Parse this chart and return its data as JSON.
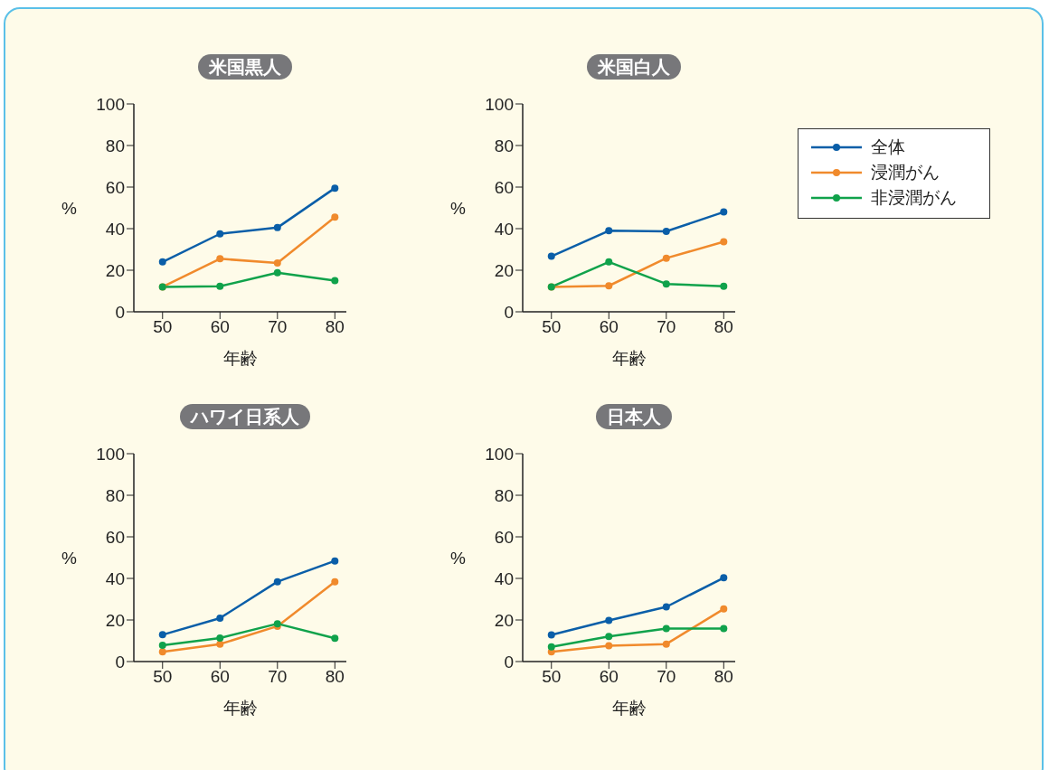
{
  "chart_data": [
    {
      "type": "line",
      "title": "米国黒人",
      "xlabel": "年齢",
      "ylabel": "%",
      "x": [
        50,
        60,
        70,
        80
      ],
      "xlim": [
        45,
        82
      ],
      "xticks": [
        50,
        60,
        70,
        80
      ],
      "ylim": [
        0,
        100
      ],
      "yticks": [
        0,
        20,
        40,
        60,
        80,
        100
      ],
      "grid": false,
      "marker": "circle",
      "line_style": "solid",
      "series": [
        {
          "color": "#0a5ea8",
          "values": [
            24,
            37.5,
            40.5,
            59.5
          ]
        },
        {
          "color": "#f08a2c",
          "values": [
            12,
            25.5,
            23.5,
            45.5
          ]
        },
        {
          "color": "#10a24b",
          "values": [
            12,
            12.3,
            18.8,
            15
          ]
        }
      ]
    },
    {
      "type": "line",
      "title": "米国白人",
      "xlabel": "年齢",
      "ylabel": "%",
      "x": [
        50,
        60,
        70,
        80
      ],
      "xlim": [
        45,
        82
      ],
      "xticks": [
        50,
        60,
        70,
        80
      ],
      "ylim": [
        0,
        100
      ],
      "yticks": [
        0,
        20,
        40,
        60,
        80,
        100
      ],
      "grid": false,
      "legend": "right",
      "marker": "circle",
      "line_style": "solid",
      "series": [
        {
          "name": "全体",
          "color": "#0a5ea8",
          "values": [
            26.7,
            39,
            38.7,
            48
          ]
        },
        {
          "name": "浸潤がん",
          "color": "#f08a2c",
          "values": [
            12,
            12.5,
            25.8,
            33.7
          ]
        },
        {
          "name": "非浸潤がん",
          "color": "#10a24b",
          "values": [
            12,
            24,
            13.4,
            12.3
          ]
        }
      ]
    },
    {
      "type": "line",
      "title": "ハワイ日系人",
      "xlabel": "年齢",
      "ylabel": "%",
      "x": [
        50,
        60,
        70,
        80
      ],
      "xlim": [
        45,
        82
      ],
      "xticks": [
        50,
        60,
        70,
        80
      ],
      "ylim": [
        0,
        100
      ],
      "yticks": [
        0,
        20,
        40,
        60,
        80,
        100
      ],
      "grid": false,
      "marker": "circle",
      "line_style": "solid",
      "series": [
        {
          "color": "#0a5ea8",
          "values": [
            12.9,
            20.9,
            38.4,
            48.4
          ]
        },
        {
          "color": "#f08a2c",
          "values": [
            4.7,
            8.4,
            17,
            38.4
          ]
        },
        {
          "color": "#10a24b",
          "values": [
            7.8,
            11.3,
            18.2,
            11.2
          ]
        }
      ]
    },
    {
      "type": "line",
      "title": "日本人",
      "xlabel": "年齢",
      "ylabel": "%",
      "x": [
        50,
        60,
        70,
        80
      ],
      "xlim": [
        45,
        82
      ],
      "xticks": [
        50,
        60,
        70,
        80
      ],
      "ylim": [
        0,
        100
      ],
      "yticks": [
        0,
        20,
        40,
        60,
        80,
        100
      ],
      "grid": false,
      "marker": "circle",
      "line_style": "solid",
      "series": [
        {
          "color": "#0a5ea8",
          "values": [
            12.8,
            19.8,
            26.3,
            40.3
          ]
        },
        {
          "color": "#f08a2c",
          "values": [
            4.7,
            7.6,
            8.4,
            25.3
          ]
        },
        {
          "color": "#10a24b",
          "values": [
            7.1,
            12.1,
            15.9,
            15.9
          ]
        }
      ]
    }
  ]
}
